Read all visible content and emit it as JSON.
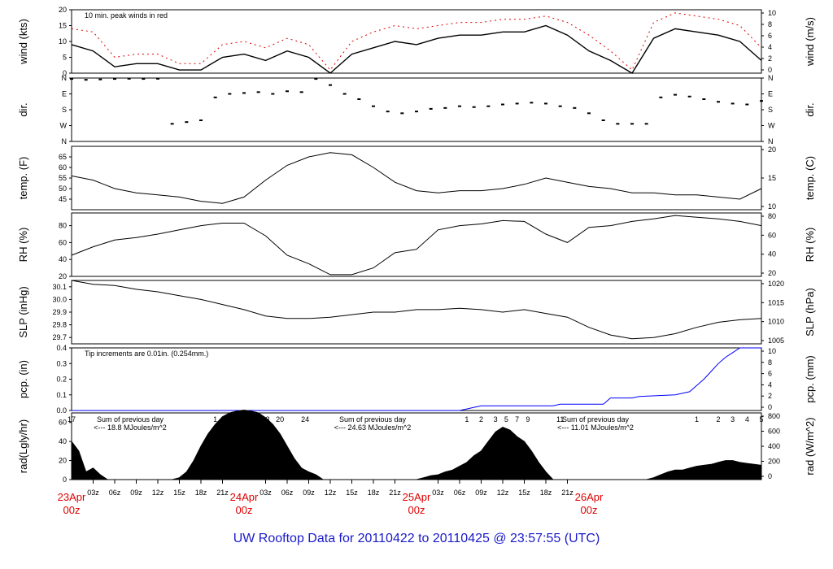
{
  "title": "UW Rooftop Data for 20110422  to  20110425 @ 23:57:55  (UTC)",
  "colors": {
    "trace": "#000000",
    "peak": "#e00000",
    "precip": "#0000ff",
    "radtext": "#9a00c8",
    "title": "#1a1acc",
    "date": "#e00000"
  },
  "chart_data": [
    {
      "type": "line",
      "ylabel_left": "wind (kts)",
      "ylabel_right": "wind (m/s)",
      "ylim": [
        0,
        20
      ],
      "yticks": [
        0,
        5,
        10,
        15,
        20
      ],
      "yticks_right": [
        0,
        2,
        4,
        6,
        8,
        10
      ],
      "annotation": "10 min. peak winds in red",
      "series": [
        {
          "name": "",
          "x_hours": [
            0,
            3,
            6,
            9,
            12,
            15,
            18,
            21,
            24,
            27,
            30,
            33,
            36,
            39,
            42,
            45,
            48,
            51,
            54,
            57,
            60,
            63,
            66,
            69,
            72,
            75,
            78,
            81,
            84,
            87,
            90,
            93,
            96
          ],
          "values": [
            9,
            7,
            2,
            3,
            3,
            1,
            1,
            5,
            6,
            4,
            7,
            5,
            0,
            6,
            8,
            10,
            9,
            11,
            12,
            12,
            13,
            13,
            15,
            12,
            7,
            4,
            0,
            11,
            14,
            13,
            12,
            10,
            4
          ]
        },
        {
          "name": "",
          "x_hours": [
            0,
            3,
            6,
            9,
            12,
            15,
            18,
            21,
            24,
            27,
            30,
            33,
            36,
            39,
            42,
            45,
            48,
            51,
            54,
            57,
            60,
            63,
            66,
            69,
            72,
            75,
            78,
            81,
            84,
            87,
            90,
            93,
            96
          ],
          "values": [
            14,
            13,
            5,
            6,
            6,
            3,
            3,
            9,
            10,
            8,
            11,
            9,
            1,
            10,
            13,
            15,
            14,
            15,
            16,
            16,
            17,
            17,
            18,
            16,
            12,
            7,
            1,
            16,
            19,
            18,
            17,
            15,
            8
          ]
        }
      ]
    },
    {
      "type": "scatter",
      "ylabel_left": "dir.",
      "ylabel_right": "dir.",
      "ytick_labels": [
        "N",
        "W",
        "S",
        "E",
        "N"
      ],
      "series": [
        {
          "name": "",
          "x_hours": [
            0,
            2,
            4,
            6,
            8,
            10,
            12,
            14,
            16,
            18,
            20,
            22,
            24,
            26,
            28,
            30,
            32,
            34,
            36,
            38,
            40,
            42,
            44,
            46,
            48,
            50,
            52,
            54,
            56,
            58,
            60,
            62,
            64,
            66,
            68,
            70,
            72,
            74,
            76,
            78,
            80,
            82,
            84,
            86,
            88,
            90,
            92,
            94,
            96
          ],
          "values": [
            355,
            350,
            352,
            355,
            356,
            355,
            356,
            100,
            110,
            120,
            250,
            270,
            275,
            280,
            270,
            285,
            280,
            355,
            320,
            270,
            240,
            200,
            170,
            160,
            170,
            185,
            190,
            200,
            195,
            200,
            210,
            215,
            220,
            215,
            200,
            190,
            160,
            120,
            100,
            100,
            100,
            250,
            265,
            255,
            240,
            225,
            215,
            210,
            230
          ]
        }
      ]
    },
    {
      "type": "line",
      "ylabel_left": "temp. (F)",
      "ylabel_right": "temp. (C)",
      "ylim": [
        40,
        70
      ],
      "yticks": [
        45,
        50,
        55,
        60,
        65
      ],
      "yticks_right": [
        10,
        15,
        20
      ],
      "series": [
        {
          "name": "",
          "x_hours": [
            0,
            3,
            6,
            9,
            12,
            15,
            18,
            21,
            24,
            27,
            30,
            33,
            36,
            39,
            42,
            45,
            48,
            51,
            54,
            57,
            60,
            63,
            66,
            69,
            72,
            75,
            78,
            81,
            84,
            87,
            90,
            93,
            96
          ],
          "values": [
            56,
            54,
            50,
            48,
            47,
            46,
            44,
            43,
            46,
            54,
            61,
            65,
            67,
            66,
            60,
            53,
            49,
            48,
            49,
            49,
            50,
            52,
            55,
            53,
            51,
            50,
            48,
            48,
            47,
            47,
            46,
            45,
            50
          ]
        }
      ]
    },
    {
      "type": "line",
      "ylabel_left": "RH (%)",
      "ylabel_right": "RH (%)",
      "ylim": [
        20,
        95
      ],
      "yticks": [
        20,
        40,
        60,
        80
      ],
      "yticks_right": [
        20,
        40,
        60,
        80
      ],
      "series": [
        {
          "name": "",
          "x_hours": [
            0,
            3,
            6,
            9,
            12,
            15,
            18,
            21,
            24,
            27,
            30,
            33,
            36,
            39,
            42,
            45,
            48,
            51,
            54,
            57,
            60,
            63,
            66,
            69,
            72,
            75,
            78,
            81,
            84,
            87,
            90,
            93,
            96
          ],
          "values": [
            45,
            55,
            63,
            66,
            70,
            75,
            80,
            83,
            83,
            68,
            45,
            35,
            22,
            22,
            30,
            48,
            52,
            75,
            80,
            82,
            86,
            85,
            70,
            60,
            78,
            80,
            85,
            88,
            92,
            90,
            88,
            85,
            80
          ]
        }
      ]
    },
    {
      "type": "line",
      "ylabel_left": "SLP (inHg)",
      "ylabel_right": "SLP (hPa)",
      "ylim": [
        29.65,
        30.15
      ],
      "yticks": [
        29.7,
        29.8,
        29.9,
        30.0,
        30.1
      ],
      "yticks_right": [
        1005,
        1010,
        1015,
        1020
      ],
      "series": [
        {
          "name": "",
          "x_hours": [
            0,
            3,
            6,
            9,
            12,
            15,
            18,
            21,
            24,
            27,
            30,
            33,
            36,
            39,
            42,
            45,
            48,
            51,
            54,
            57,
            60,
            63,
            66,
            69,
            72,
            75,
            78,
            81,
            84,
            87,
            90,
            93,
            96
          ],
          "values": [
            30.15,
            30.12,
            30.11,
            30.08,
            30.06,
            30.03,
            30.0,
            29.96,
            29.92,
            29.87,
            29.85,
            29.85,
            29.86,
            29.88,
            29.9,
            29.9,
            29.92,
            29.92,
            29.93,
            29.92,
            29.9,
            29.92,
            29.89,
            29.86,
            29.78,
            29.72,
            29.69,
            29.7,
            29.73,
            29.78,
            29.82,
            29.84,
            29.85
          ]
        }
      ]
    },
    {
      "type": "line",
      "ylabel_left": "pcp. (in)",
      "ylabel_right": "pcp. (mm)",
      "ylim": [
        0,
        0.4
      ],
      "yticks": [
        0.0,
        0.1,
        0.2,
        0.3,
        0.4
      ],
      "yticks_right": [
        0,
        2,
        4,
        6,
        8,
        10
      ],
      "annotation": "Tip increments are 0.01in. (0.254mm.)",
      "series": [
        {
          "name": "",
          "x_hours": [
            0,
            54,
            55,
            56,
            57,
            67,
            68,
            74,
            75,
            78,
            79,
            84,
            86,
            87,
            88,
            89,
            90,
            91,
            92,
            93,
            94,
            96
          ],
          "values": [
            0,
            0,
            0.01,
            0.02,
            0.03,
            0.03,
            0.04,
            0.04,
            0.08,
            0.08,
            0.09,
            0.1,
            0.12,
            0.16,
            0.2,
            0.25,
            0.3,
            0.34,
            0.37,
            0.4,
            0.4,
            0.4
          ]
        }
      ]
    },
    {
      "type": "area",
      "ylabel_left": "rad(Lgly/hr)",
      "ylabel_right": "rad (W/m^2)",
      "ylim": [
        0,
        70
      ],
      "yticks": [
        0,
        20,
        40,
        60
      ],
      "yticks_right": [
        0,
        200,
        400,
        600,
        800
      ],
      "annotations": [
        {
          "line1": "Sum of previous day",
          "line2": "<--- 18.8 MJoules/m^2"
        },
        {
          "line1": "Sum of previous day",
          "line2": "<--- 24.63 MJoules/m^2"
        },
        {
          "line1": "Sum of previous day",
          "line2": "<--- 11.01 MJoules/m^2"
        }
      ],
      "hour_labels": [
        {
          "x_hours": 0,
          "text": "17"
        },
        {
          "x_hours": 20,
          "text": "1"
        },
        {
          "x_hours": 21.5,
          "text": "3"
        },
        {
          "x_hours": 23,
          "text": "6"
        },
        {
          "x_hours": 25,
          "text": "10"
        },
        {
          "x_hours": 27,
          "text": "13"
        },
        {
          "x_hours": 29,
          "text": "20"
        },
        {
          "x_hours": 32.5,
          "text": "24"
        },
        {
          "x_hours": 55,
          "text": "1"
        },
        {
          "x_hours": 57,
          "text": "2"
        },
        {
          "x_hours": 59,
          "text": "3"
        },
        {
          "x_hours": 60.5,
          "text": "5"
        },
        {
          "x_hours": 62,
          "text": "7"
        },
        {
          "x_hours": 63.5,
          "text": "9"
        },
        {
          "x_hours": 68,
          "text": "11"
        },
        {
          "x_hours": 87,
          "text": "1"
        },
        {
          "x_hours": 90,
          "text": "2"
        },
        {
          "x_hours": 92,
          "text": "3"
        },
        {
          "x_hours": 94,
          "text": "4"
        },
        {
          "x_hours": 96,
          "text": "5"
        }
      ],
      "series": [
        {
          "name": "",
          "x_hours": [
            0,
            1,
            2,
            3,
            4,
            5,
            14,
            15,
            16,
            17,
            18,
            19,
            20,
            21,
            22,
            23,
            24,
            25,
            26,
            27,
            28,
            29,
            30,
            31,
            32,
            33,
            34,
            35,
            48,
            49,
            50,
            51,
            52,
            53,
            54,
            55,
            56,
            57,
            58,
            59,
            60,
            61,
            62,
            63,
            64,
            65,
            66,
            67,
            80,
            81,
            82,
            83,
            84,
            85,
            86,
            87,
            88,
            89,
            90,
            91,
            92,
            93,
            94,
            95,
            96
          ],
          "values": [
            40,
            30,
            8,
            12,
            5,
            0,
            0,
            2,
            8,
            20,
            35,
            48,
            58,
            66,
            70,
            72,
            73,
            72,
            70,
            65,
            58,
            48,
            35,
            22,
            12,
            8,
            5,
            0,
            0,
            2,
            4,
            5,
            8,
            10,
            14,
            18,
            25,
            30,
            40,
            50,
            55,
            52,
            45,
            40,
            30,
            18,
            8,
            0,
            0,
            2,
            5,
            8,
            10,
            10,
            12,
            14,
            15,
            16,
            18,
            20,
            20,
            18,
            17,
            16,
            15
          ]
        }
      ]
    }
  ],
  "x_axis": {
    "ticks": [
      {
        "x_hours": 3,
        "label": "03z"
      },
      {
        "x_hours": 6,
        "label": "06z"
      },
      {
        "x_hours": 9,
        "label": "09z"
      },
      {
        "x_hours": 12,
        "label": "12z"
      },
      {
        "x_hours": 15,
        "label": "15z"
      },
      {
        "x_hours": 18,
        "label": "18z"
      },
      {
        "x_hours": 21,
        "label": "21z"
      },
      {
        "x_hours": 27,
        "label": "03z"
      },
      {
        "x_hours": 30,
        "label": "06z"
      },
      {
        "x_hours": 33,
        "label": "09z"
      },
      {
        "x_hours": 36,
        "label": "12z"
      },
      {
        "x_hours": 39,
        "label": "15z"
      },
      {
        "x_hours": 42,
        "label": "18z"
      },
      {
        "x_hours": 45,
        "label": "21z"
      },
      {
        "x_hours": 51,
        "label": "03z"
      },
      {
        "x_hours": 54,
        "label": "06z"
      },
      {
        "x_hours": 57,
        "label": "09z"
      },
      {
        "x_hours": 60,
        "label": "12z"
      },
      {
        "x_hours": 63,
        "label": "15z"
      },
      {
        "x_hours": 66,
        "label": "18z"
      },
      {
        "x_hours": 69,
        "label": "21z"
      }
    ],
    "date_labels": [
      {
        "x_hours": 0,
        "line1": "23Apr",
        "line2": "00z"
      },
      {
        "x_hours": 24,
        "line1": "24Apr",
        "line2": "00z"
      },
      {
        "x_hours": 48,
        "line1": "25Apr",
        "line2": "00z"
      },
      {
        "x_hours": 72,
        "line1": "26Apr",
        "line2": "00z"
      }
    ]
  }
}
